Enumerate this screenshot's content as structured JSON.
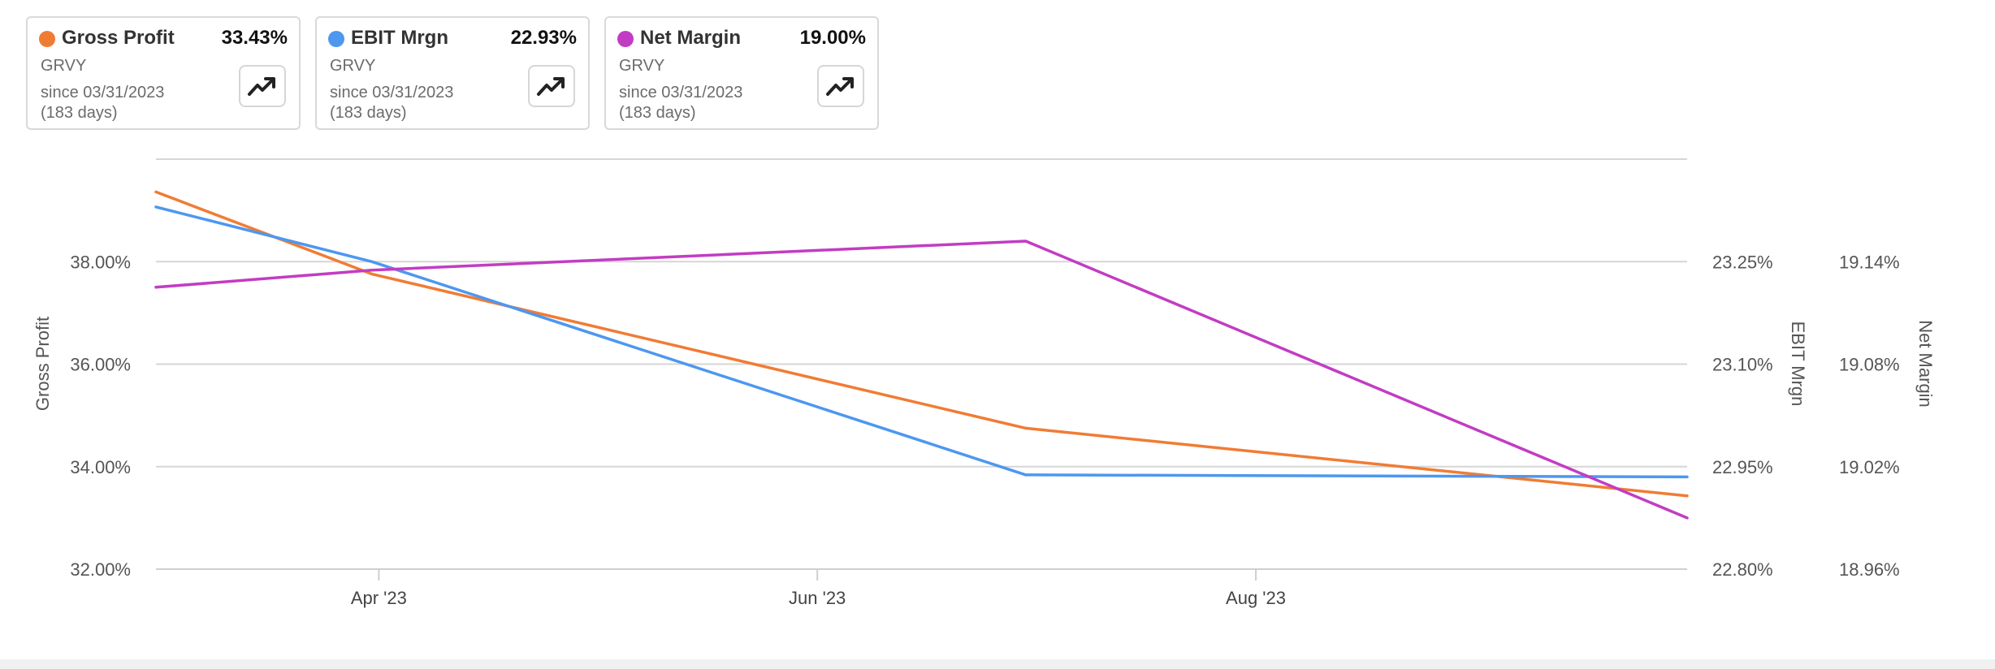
{
  "cards": [
    {
      "name": "Gross Profit",
      "value": "33.43%",
      "ticker": "GRVY",
      "since": "since 03/31/2023",
      "days": "(183 days)",
      "color": "#f07c34"
    },
    {
      "name": "EBIT Mrgn",
      "value": "22.93%",
      "ticker": "GRVY",
      "since": "since 03/31/2023",
      "days": "(183 days)",
      "color": "#4d97f0"
    },
    {
      "name": "Net Margin",
      "value": "19.00%",
      "ticker": "GRVY",
      "since": "since 03/31/2023",
      "days": "(183 days)",
      "color": "#c23cc3"
    }
  ],
  "chart_data": {
    "type": "line",
    "x": [
      "2023-03-01",
      "2023-03-31",
      "2023-06-30",
      "2023-09-30"
    ],
    "x_ticks": [
      "Apr '23",
      "Jun '23",
      "Aug '23"
    ],
    "x_tick_dates": [
      "2023-04-01",
      "2023-06-01",
      "2023-08-01"
    ],
    "x_range": [
      "2023-03-01",
      "2023-09-30"
    ],
    "series": [
      {
        "name": "Gross Profit",
        "axis": "left",
        "color": "#f07c34",
        "x": [
          "2023-03-01",
          "2023-03-31",
          "2023-06-30",
          "2023-09-30"
        ],
        "values": [
          39.36,
          37.76,
          34.75,
          33.43
        ]
      },
      {
        "name": "EBIT Mrgn",
        "axis": "right1",
        "color": "#4d97f0",
        "x": [
          "2023-03-01",
          "2023-03-31",
          "2023-06-30",
          "2023-09-30"
        ],
        "values": [
          23.33,
          23.25,
          22.938,
          22.935
        ]
      },
      {
        "name": "Net Margin",
        "axis": "right2",
        "color": "#c23cc3",
        "x": [
          "2023-03-01",
          "2023-03-31",
          "2023-06-30",
          "2023-09-30"
        ],
        "values": [
          19.125,
          19.135,
          19.152,
          18.99
        ]
      }
    ],
    "axes": {
      "left": {
        "label": "Gross Profit",
        "ticks": [
          32,
          34,
          36,
          38
        ],
        "tick_labels": [
          "32.00%",
          "34.00%",
          "36.00%",
          "38.00%"
        ],
        "range": [
          32,
          40
        ]
      },
      "right1": {
        "label": "EBIT Mrgn",
        "ticks": [
          22.8,
          22.95,
          23.1,
          23.25
        ],
        "tick_labels": [
          "22.80%",
          "22.95%",
          "23.10%",
          "23.25%"
        ],
        "range": [
          22.8,
          23.4
        ]
      },
      "right2": {
        "label": "Net Margin",
        "ticks": [
          18.96,
          19.02,
          19.08,
          19.14
        ],
        "tick_labels": [
          "18.96%",
          "19.02%",
          "19.08%",
          "19.14%"
        ],
        "range": [
          18.96,
          19.2
        ]
      }
    },
    "grid": true,
    "legend": "top cards"
  }
}
